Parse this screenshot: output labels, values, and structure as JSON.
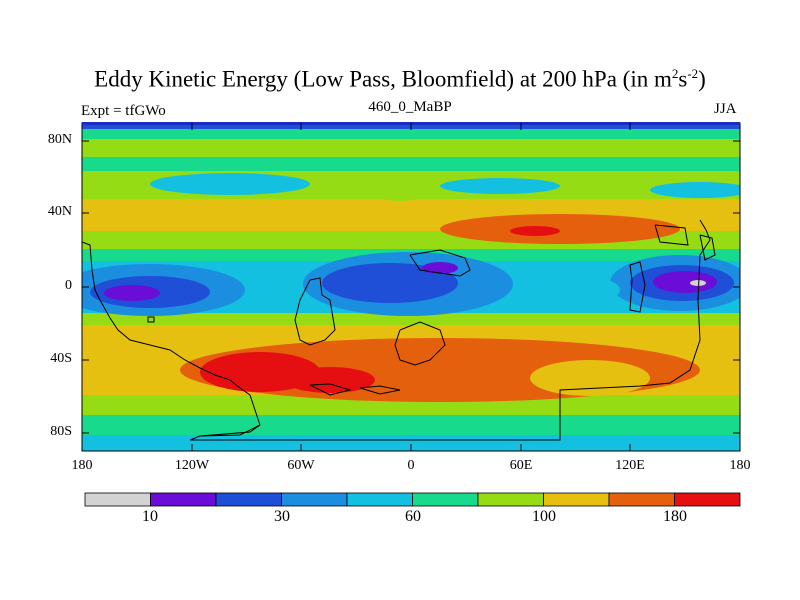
{
  "title_main": "Eddy Kinetic Energy (Low Pass, Bloomfield) at 200 hPa (in m",
  "title_sup1": "2",
  "title_mid": "s",
  "title_sup2": "-2",
  "title_end": ")",
  "left_label": "Expt = tfGWo",
  "center_label": "460_0_MaBP",
  "right_label": "JJA",
  "lat_ticks": [
    "80N",
    "40N",
    "0",
    "40S",
    "80S"
  ],
  "lon_ticks": [
    "180",
    "120W",
    "60W",
    "0",
    "60E",
    "120E",
    "180"
  ],
  "colorbar": {
    "colors": [
      "#d3d3d3",
      "#6a0dd6",
      "#1e4fd6",
      "#1c8ee0",
      "#14c0e0",
      "#18da8c",
      "#96dc14",
      "#e6c010",
      "#e5600c",
      "#e50e10"
    ],
    "labels": [
      "10",
      "30",
      "60",
      "100",
      "180"
    ]
  },
  "chart_data": {
    "type": "heatmap",
    "title": "Eddy Kinetic Energy (Low Pass, Bloomfield) at 200 hPa (in m2s-2)",
    "variable": "Eddy kinetic energy",
    "units": "m2 s-2",
    "level": "200 hPa",
    "season": "JJA",
    "experiment": "tfGWo",
    "case": "460_0_MaBP",
    "x_axis": {
      "range": [
        -180,
        180
      ],
      "ticks": [
        -180,
        -120,
        -60,
        0,
        60,
        120,
        180
      ]
    },
    "y_axis": {
      "range": [
        -90,
        90
      ],
      "ticks": [
        80,
        40,
        0,
        -40,
        -80
      ]
    },
    "color_levels": [
      10,
      30,
      60,
      100,
      180
    ]
  }
}
